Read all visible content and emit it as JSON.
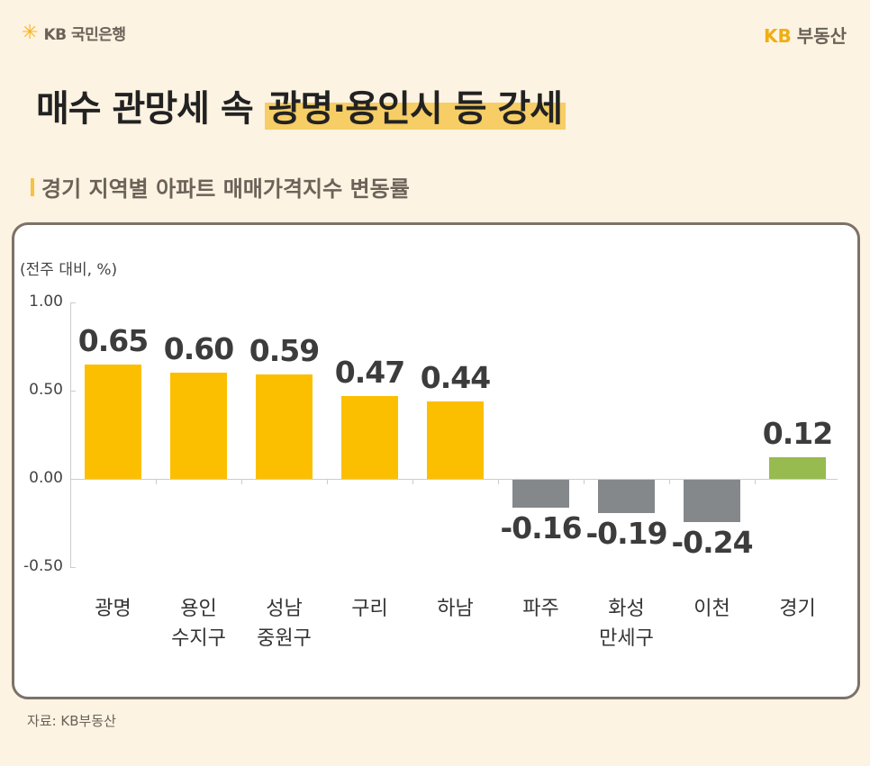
{
  "header": {
    "left_logo_text": "KB 국민은행",
    "left_logo_icon": "kb-star-icon",
    "right_logo_kb": "KB",
    "right_logo_name": "부동산"
  },
  "title": {
    "plain": "매수 관망세 속 ",
    "highlight": "광명·용인시 등 강세"
  },
  "subtitle": "경기 지역별 아파트 매매가격지수 변동률",
  "unit_label": "(전주 대비, %)",
  "source": "자료: KB부동산",
  "colors": {
    "background": "#fdf3e2",
    "positive_bar": "#fcbf00",
    "negative_bar": "#85888b",
    "total_bar": "#97bb4f",
    "title_highlight": "#f6ce65",
    "card_border": "#7c7268"
  },
  "chart_data": {
    "type": "bar",
    "title": "경기 지역별 아파트 매매가격지수 변동률",
    "ylabel": "(전주 대비, %)",
    "xlabel": "",
    "ylim": [
      -0.5,
      1.0
    ],
    "yticks": [
      "1.00",
      "0.50",
      "0.00",
      "-0.50"
    ],
    "grid": false,
    "legend": null,
    "categories": [
      "광명",
      "용인 수지구",
      "성남 중원구",
      "구리",
      "하남",
      "파주",
      "화성 만세구",
      "이천",
      "경기"
    ],
    "category_lines": [
      [
        "광명"
      ],
      [
        "용인",
        "수지구"
      ],
      [
        "성남",
        "중원구"
      ],
      [
        "구리"
      ],
      [
        "하남"
      ],
      [
        "파주"
      ],
      [
        "화성",
        "만세구"
      ],
      [
        "이천"
      ],
      [
        "경기"
      ]
    ],
    "values": [
      0.65,
      0.6,
      0.59,
      0.47,
      0.44,
      -0.16,
      -0.19,
      -0.24,
      0.12
    ],
    "labels": [
      "0.65",
      "0.60",
      "0.59",
      "0.47",
      "0.44",
      "-0.16",
      "-0.19",
      "-0.24",
      "0.12"
    ]
  }
}
